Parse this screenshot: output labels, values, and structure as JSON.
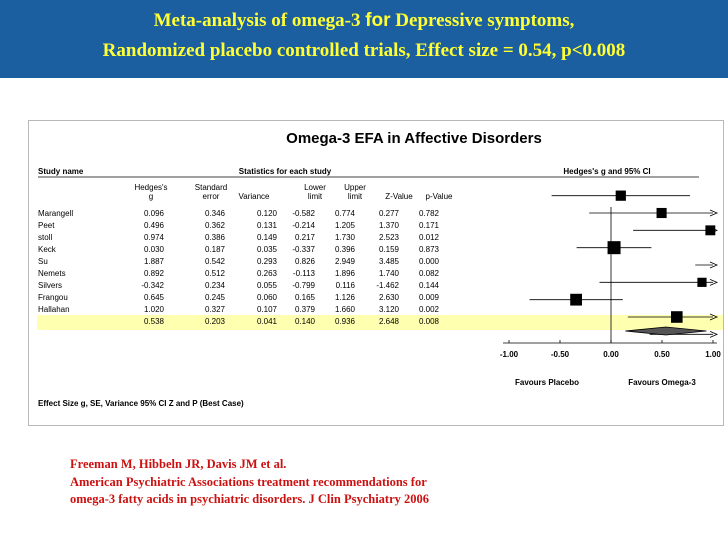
{
  "slide": {
    "title_line1_a": "Meta-analysis of omega-3 ",
    "title_line1_for": "for",
    "title_line1_b": " Depressive symptoms,",
    "title_line2": "Randomized placebo controlled trials,  Effect size = 0.54, p<0.008",
    "reference_line1": "Freeman M, Hibbeln JR, Davis JM et al.",
    "reference_line2": "American Psychiatric Associations treatment recommendations for",
    "reference_line3": "omega-3 fatty acids in psychiatric disorders.   J Clin Psychiatry 2006"
  },
  "chart_data": {
    "type": "forest",
    "title": "Omega-3 EFA in Affective Disorders",
    "study_name_header": "Study name",
    "stats_header": "Statistics for each study",
    "plot_header": "Hedges's g and 95% CI",
    "columns": [
      [
        "Hedges's",
        "g"
      ],
      [
        "Standard",
        "error"
      ],
      [
        "",
        "Variance"
      ],
      [
        "Lower",
        "limit"
      ],
      [
        "Upper",
        "limit"
      ],
      [
        "",
        "Z-Value"
      ],
      [
        "",
        "p-Value"
      ]
    ],
    "rows": [
      {
        "study": "Marangell",
        "cells": [
          "0.096",
          "0.346",
          "0.120",
          "-0.582",
          "0.774",
          "0.277",
          "0.782"
        ],
        "g": 0.096,
        "lower": -0.582,
        "upper": 0.774
      },
      {
        "study": "Peet",
        "cells": [
          "0.496",
          "0.362",
          "0.131",
          "-0.214",
          "1.205",
          "1.370",
          "0.171"
        ],
        "g": 0.496,
        "lower": -0.214,
        "upper": 1.205
      },
      {
        "study": "stoll",
        "cells": [
          "0.974",
          "0.386",
          "0.149",
          "0.217",
          "1.730",
          "2.523",
          "0.012"
        ],
        "g": 0.974,
        "lower": 0.217,
        "upper": 1.73
      },
      {
        "study": "Keck",
        "cells": [
          "0.030",
          "0.187",
          "0.035",
          "-0.337",
          "0.396",
          "0.159",
          "0.873"
        ],
        "g": 0.03,
        "lower": -0.337,
        "upper": 0.396
      },
      {
        "study": "Su",
        "cells": [
          "1.887",
          "0.542",
          "0.293",
          "0.826",
          "2.949",
          "3.485",
          "0.000"
        ],
        "g": 1.887,
        "lower": 0.826,
        "upper": 2.949
      },
      {
        "study": "Nemets",
        "cells": [
          "0.892",
          "0.512",
          "0.263",
          "-0.113",
          "1.896",
          "1.740",
          "0.082"
        ],
        "g": 0.892,
        "lower": -0.113,
        "upper": 1.896
      },
      {
        "study": "Silvers",
        "cells": [
          "-0.342",
          "0.234",
          "0.055",
          "-0.799",
          "0.116",
          "-1.462",
          "0.144"
        ],
        "g": -0.342,
        "lower": -0.799,
        "upper": 0.116
      },
      {
        "study": "Frangou",
        "cells": [
          "0.645",
          "0.245",
          "0.060",
          "0.165",
          "1.126",
          "2.630",
          "0.009"
        ],
        "g": 0.645,
        "lower": 0.165,
        "upper": 1.126
      },
      {
        "study": "Hallahan",
        "cells": [
          "1.020",
          "0.327",
          "0.107",
          "0.379",
          "1.660",
          "3.120",
          "0.002"
        ],
        "g": 1.02,
        "lower": 0.379,
        "upper": 1.66
      }
    ],
    "summary": {
      "cells": [
        "0.538",
        "0.203",
        "0.041",
        "0.140",
        "0.936",
        "2.648",
        "0.008"
      ],
      "g": 0.538,
      "lower": 0.14,
      "upper": 0.936
    },
    "xlim": [
      -1.0,
      1.0
    ],
    "xticks": [
      "-1.00",
      "-0.50",
      "0.00",
      "0.50",
      "1.00"
    ],
    "xtick_values": [
      -1.0,
      -0.5,
      0.0,
      0.5,
      1.0
    ],
    "favours_left": "Favours Placebo",
    "favours_right": "Favours Omega-3",
    "footer": "Effect Size g, SE, Variance 95% CI Z and P (Best Case)",
    "colors": {
      "summary_highlight": "#ffffb0",
      "marker": "#000000"
    }
  }
}
